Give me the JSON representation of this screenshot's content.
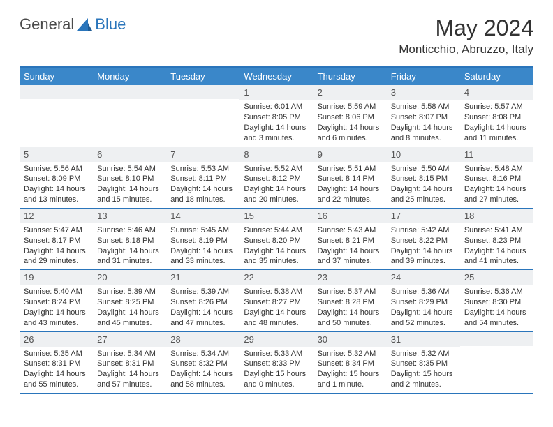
{
  "logo": {
    "general": "General",
    "blue": "Blue"
  },
  "title": "May 2024",
  "location": "Monticchio, Abruzzo, Italy",
  "weekdays": [
    "Sunday",
    "Monday",
    "Tuesday",
    "Wednesday",
    "Thursday",
    "Friday",
    "Saturday"
  ],
  "colors": {
    "header_bg": "#3a87c9",
    "header_border": "#2a75bb",
    "daynum_bg": "#eef0f2",
    "text": "#333333",
    "logo_gray": "#4a4a4a",
    "logo_blue": "#2a75bb"
  },
  "typography": {
    "title_fontsize": 32,
    "location_fontsize": 17,
    "weekday_fontsize": 13,
    "daynum_fontsize": 13,
    "content_fontsize": 11
  },
  "calendar": {
    "type": "calendar-table",
    "weeks": [
      [
        null,
        null,
        null,
        {
          "n": "1",
          "sunrise": "6:01 AM",
          "sunset": "8:05 PM",
          "daylight": "14 hours and 3 minutes."
        },
        {
          "n": "2",
          "sunrise": "5:59 AM",
          "sunset": "8:06 PM",
          "daylight": "14 hours and 6 minutes."
        },
        {
          "n": "3",
          "sunrise": "5:58 AM",
          "sunset": "8:07 PM",
          "daylight": "14 hours and 8 minutes."
        },
        {
          "n": "4",
          "sunrise": "5:57 AM",
          "sunset": "8:08 PM",
          "daylight": "14 hours and 11 minutes."
        }
      ],
      [
        {
          "n": "5",
          "sunrise": "5:56 AM",
          "sunset": "8:09 PM",
          "daylight": "14 hours and 13 minutes."
        },
        {
          "n": "6",
          "sunrise": "5:54 AM",
          "sunset": "8:10 PM",
          "daylight": "14 hours and 15 minutes."
        },
        {
          "n": "7",
          "sunrise": "5:53 AM",
          "sunset": "8:11 PM",
          "daylight": "14 hours and 18 minutes."
        },
        {
          "n": "8",
          "sunrise": "5:52 AM",
          "sunset": "8:12 PM",
          "daylight": "14 hours and 20 minutes."
        },
        {
          "n": "9",
          "sunrise": "5:51 AM",
          "sunset": "8:14 PM",
          "daylight": "14 hours and 22 minutes."
        },
        {
          "n": "10",
          "sunrise": "5:50 AM",
          "sunset": "8:15 PM",
          "daylight": "14 hours and 25 minutes."
        },
        {
          "n": "11",
          "sunrise": "5:48 AM",
          "sunset": "8:16 PM",
          "daylight": "14 hours and 27 minutes."
        }
      ],
      [
        {
          "n": "12",
          "sunrise": "5:47 AM",
          "sunset": "8:17 PM",
          "daylight": "14 hours and 29 minutes."
        },
        {
          "n": "13",
          "sunrise": "5:46 AM",
          "sunset": "8:18 PM",
          "daylight": "14 hours and 31 minutes."
        },
        {
          "n": "14",
          "sunrise": "5:45 AM",
          "sunset": "8:19 PM",
          "daylight": "14 hours and 33 minutes."
        },
        {
          "n": "15",
          "sunrise": "5:44 AM",
          "sunset": "8:20 PM",
          "daylight": "14 hours and 35 minutes."
        },
        {
          "n": "16",
          "sunrise": "5:43 AM",
          "sunset": "8:21 PM",
          "daylight": "14 hours and 37 minutes."
        },
        {
          "n": "17",
          "sunrise": "5:42 AM",
          "sunset": "8:22 PM",
          "daylight": "14 hours and 39 minutes."
        },
        {
          "n": "18",
          "sunrise": "5:41 AM",
          "sunset": "8:23 PM",
          "daylight": "14 hours and 41 minutes."
        }
      ],
      [
        {
          "n": "19",
          "sunrise": "5:40 AM",
          "sunset": "8:24 PM",
          "daylight": "14 hours and 43 minutes."
        },
        {
          "n": "20",
          "sunrise": "5:39 AM",
          "sunset": "8:25 PM",
          "daylight": "14 hours and 45 minutes."
        },
        {
          "n": "21",
          "sunrise": "5:39 AM",
          "sunset": "8:26 PM",
          "daylight": "14 hours and 47 minutes."
        },
        {
          "n": "22",
          "sunrise": "5:38 AM",
          "sunset": "8:27 PM",
          "daylight": "14 hours and 48 minutes."
        },
        {
          "n": "23",
          "sunrise": "5:37 AM",
          "sunset": "8:28 PM",
          "daylight": "14 hours and 50 minutes."
        },
        {
          "n": "24",
          "sunrise": "5:36 AM",
          "sunset": "8:29 PM",
          "daylight": "14 hours and 52 minutes."
        },
        {
          "n": "25",
          "sunrise": "5:36 AM",
          "sunset": "8:30 PM",
          "daylight": "14 hours and 54 minutes."
        }
      ],
      [
        {
          "n": "26",
          "sunrise": "5:35 AM",
          "sunset": "8:31 PM",
          "daylight": "14 hours and 55 minutes."
        },
        {
          "n": "27",
          "sunrise": "5:34 AM",
          "sunset": "8:31 PM",
          "daylight": "14 hours and 57 minutes."
        },
        {
          "n": "28",
          "sunrise": "5:34 AM",
          "sunset": "8:32 PM",
          "daylight": "14 hours and 58 minutes."
        },
        {
          "n": "29",
          "sunrise": "5:33 AM",
          "sunset": "8:33 PM",
          "daylight": "15 hours and 0 minutes."
        },
        {
          "n": "30",
          "sunrise": "5:32 AM",
          "sunset": "8:34 PM",
          "daylight": "15 hours and 1 minute."
        },
        {
          "n": "31",
          "sunrise": "5:32 AM",
          "sunset": "8:35 PM",
          "daylight": "15 hours and 2 minutes."
        },
        null
      ]
    ]
  },
  "labels": {
    "sunrise": "Sunrise:",
    "sunset": "Sunset:",
    "daylight": "Daylight:"
  }
}
